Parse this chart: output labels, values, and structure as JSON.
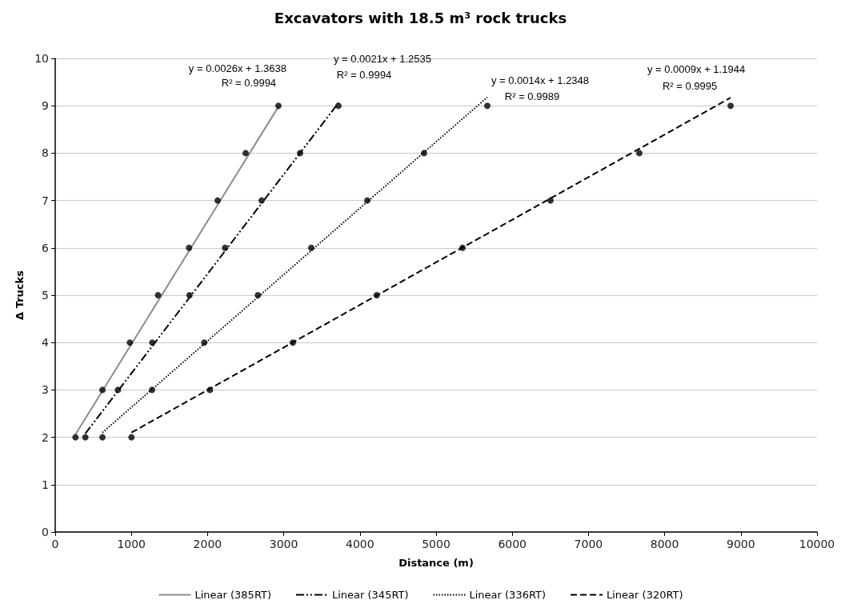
{
  "chart_data": {
    "type": "scatter",
    "title": "Excavators with 18.5 m³ rock trucks",
    "xlabel": "Distance (m)",
    "ylabel": "Δ Trucks",
    "xlim": [
      0,
      10000
    ],
    "xticks": [
      0,
      1000,
      2000,
      3000,
      4000,
      5000,
      6000,
      7000,
      8000,
      9000,
      10000
    ],
    "ylim": [
      0,
      10
    ],
    "yticks": [
      0,
      1,
      2,
      3,
      4,
      5,
      6,
      7,
      8,
      9,
      10
    ],
    "grid": "y",
    "legend": "bottom",
    "marker": "circle",
    "series": [
      {
        "color": "#000000",
        "x": [
          266,
          620,
          980,
          1350,
          1757,
          2132,
          2500,
          2930
        ],
        "values": [
          2,
          3,
          4,
          5,
          6,
          7,
          8,
          9
        ]
      },
      {
        "color": "#000000",
        "x": [
          396,
          823,
          1274,
          1763,
          2230,
          2710,
          3214,
          3718
        ],
        "values": [
          2,
          3,
          4,
          5,
          6,
          7,
          8,
          9
        ]
      },
      {
        "color": "#000000",
        "x": [
          620,
          1271,
          1957,
          2660,
          3361,
          4097,
          4842,
          5672
        ],
        "values": [
          2,
          3,
          4,
          5,
          6,
          7,
          8,
          9
        ]
      },
      {
        "color": "#000000",
        "x": [
          1001,
          2031,
          3120,
          4220,
          5347,
          6502,
          7668,
          8866
        ],
        "values": [
          2,
          3,
          4,
          5,
          6,
          7,
          8,
          9
        ]
      },
      {
        "type": "line",
        "name": "Linear (385RT)",
        "color": "#8c8c8c",
        "line_style": "solid",
        "marker": "none",
        "x": [
          266,
          2930
        ],
        "values": [
          2.06,
          8.98
        ]
      },
      {
        "type": "line",
        "name": "Linear (345RT)",
        "color": "#000000",
        "line_style": "dashdot",
        "marker": "none",
        "x": [
          396,
          3718
        ],
        "values": [
          2.08,
          9.06
        ]
      },
      {
        "type": "line",
        "name": "Linear (336RT)",
        "color": "#000000",
        "line_style": "dotted",
        "marker": "none",
        "x": [
          620,
          5672
        ],
        "values": [
          2.1,
          9.18
        ]
      },
      {
        "type": "line",
        "name": "Linear (320RT)",
        "color": "#000000",
        "line_style": "dashed",
        "marker": "none",
        "x": [
          1001,
          8866
        ],
        "values": [
          2.1,
          9.17
        ]
      }
    ],
    "annotations": [
      "y = 0.0026x + 1.3638",
      "R² = 0.9994",
      "y = 0.0021x + 1.2535",
      "R² = 0.9994",
      "y = 0.0014x + 1.2348",
      "R² = 0.9989",
      "y = 0.0009x + 1.1944",
      "R² = 0.9995"
    ]
  }
}
